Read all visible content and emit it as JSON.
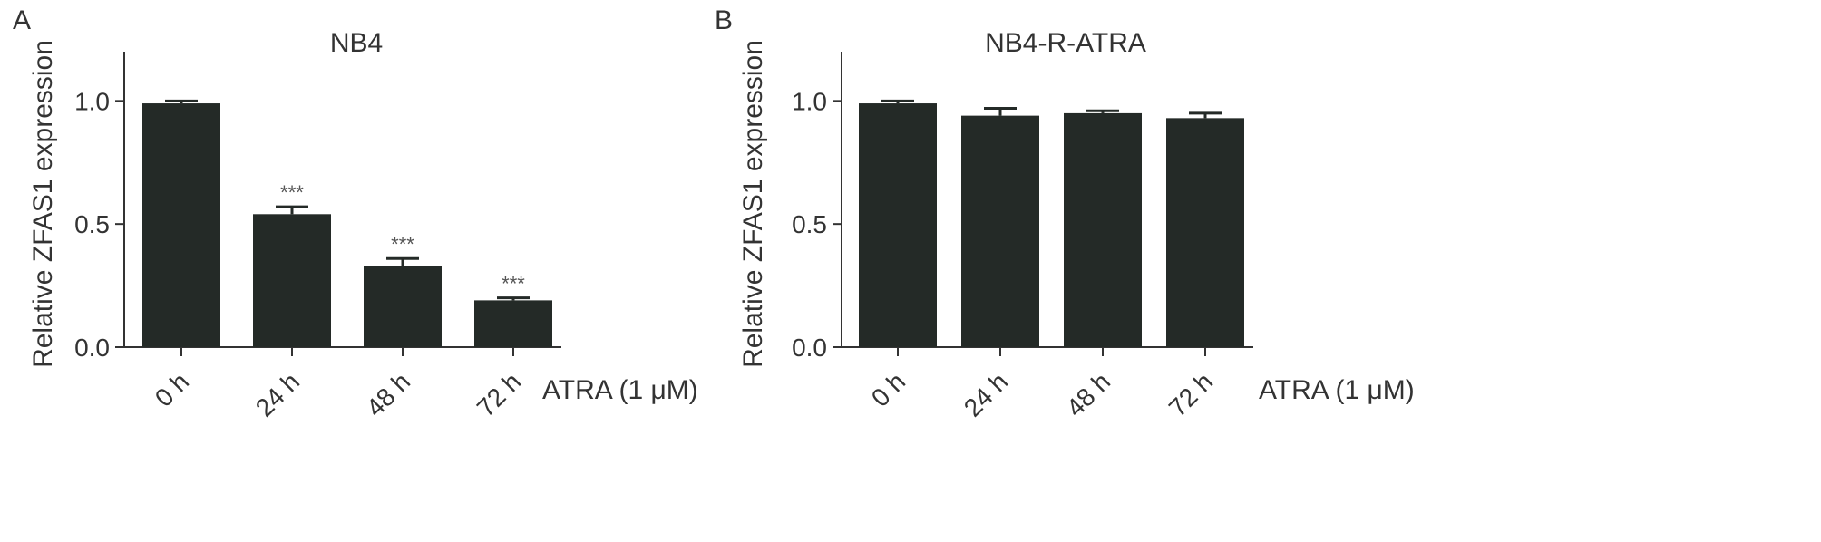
{
  "chart_data": [
    {
      "type": "bar",
      "panel_label": "A",
      "title": "NB4",
      "ylabel": "Relative ZFAS1 expression",
      "treatment_label": "ATRA (1 μM)",
      "categories": [
        "0 h",
        "24 h",
        "48 h",
        "72 h"
      ],
      "values": [
        0.99,
        0.54,
        0.33,
        0.19
      ],
      "errors": [
        0.01,
        0.03,
        0.03,
        0.01
      ],
      "significance": [
        "",
        "***",
        "***",
        "***"
      ],
      "yticks": [
        0.0,
        0.5,
        1.0
      ],
      "ytick_labels": [
        "0.0",
        "0.5",
        "1.0"
      ],
      "ylim": [
        0,
        1.2
      ],
      "bar_color": "#242a27",
      "grid": false
    },
    {
      "type": "bar",
      "panel_label": "B",
      "title": "NB4-R-ATRA",
      "ylabel": "Relative ZFAS1 expression",
      "treatment_label": "ATRA (1 μM)",
      "categories": [
        "0 h",
        "24 h",
        "48 h",
        "72 h"
      ],
      "values": [
        0.99,
        0.94,
        0.95,
        0.93
      ],
      "errors": [
        0.01,
        0.03,
        0.01,
        0.02
      ],
      "significance": [
        "",
        "",
        "",
        ""
      ],
      "yticks": [
        0.0,
        0.5,
        1.0
      ],
      "ytick_labels": [
        "0.0",
        "0.5",
        "1.0"
      ],
      "ylim": [
        0,
        1.2
      ],
      "bar_color": "#242a27",
      "grid": false
    }
  ]
}
